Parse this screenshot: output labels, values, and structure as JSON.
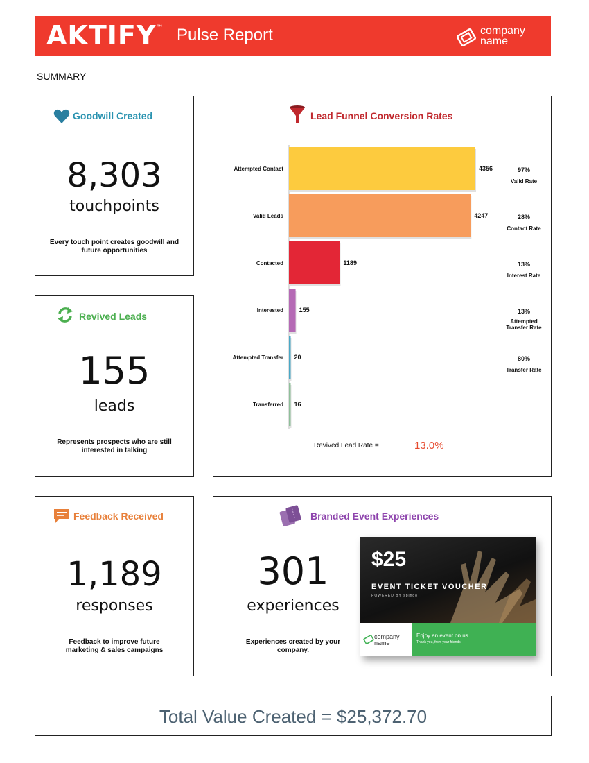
{
  "header": {
    "brand": "AKTIFY",
    "trademark": "™",
    "report_title": "Pulse Report",
    "company_logo_text": "company name"
  },
  "summary_label": "SUMMARY",
  "colors": {
    "banner": "#ef3a2d",
    "goodwill": "#2a93b0",
    "revived": "#4caf50",
    "funnel": "#c0282d",
    "feedback": "#e8803a",
    "branded": "#8e44ad"
  },
  "goodwill": {
    "title": "Goodwill Created",
    "icon": "heart-icon",
    "value": "8,303",
    "unit": "touchpoints",
    "description": "Every touch point creates goodwill and future opportunities"
  },
  "revived": {
    "title": "Revived Leads",
    "icon": "refresh-icon",
    "value": "155",
    "unit": "leads",
    "description": "Represents prospects who are still interested in talking"
  },
  "feedback": {
    "title": "Feedback Received",
    "icon": "chat-icon",
    "value": "1,189",
    "unit": "responses",
    "description": "Feedback to improve future marketing & sales campaigns"
  },
  "branded": {
    "title": "Branded Event Experiences",
    "icon": "ticket-icon",
    "value": "301",
    "unit": "experiences",
    "description": "Experiences created by your company.",
    "voucher": {
      "price": "$25",
      "label": "EVENT TICKET VOUCHER",
      "powered_by": "POWERED BY spingo",
      "company": "company name",
      "enjoy": "Enjoy an event on us.",
      "thanks": "Thank you, from your friends"
    }
  },
  "funnel": {
    "title": "Lead Funnel Conversion Rates",
    "icon": "funnel-icon",
    "revived_rate_label": "Revived Lead Rate =",
    "revived_rate_value": "13.0%"
  },
  "chart_data": {
    "type": "bar",
    "orientation": "horizontal",
    "title": "Lead Funnel Conversion Rates",
    "categories": [
      "Attempted Contact",
      "Valid Leads",
      "Contacted",
      "Interested",
      "Attempted Transfer",
      "Transferred"
    ],
    "values": [
      4356,
      4247,
      1189,
      155,
      20,
      16
    ],
    "colors": [
      "#fdcb3e",
      "#f79c5c",
      "#e32636",
      "#b56ab5",
      "#4aa8c6",
      "#8fbf9a"
    ],
    "xlim": [
      0,
      4356
    ],
    "grid": false,
    "rates": [
      {
        "value": "97%",
        "label": [
          "Valid Rate"
        ]
      },
      {
        "value": "28%",
        "label": [
          "Contact Rate"
        ]
      },
      {
        "value": "13%",
        "label": [
          "Interest Rate"
        ]
      },
      {
        "value": "13%",
        "label": [
          "Attempted",
          "Transfer Rate"
        ]
      },
      {
        "value": "80%",
        "label": [
          "Transfer Rate"
        ]
      }
    ]
  },
  "total": {
    "text": "Total Value Created = $25,372.70"
  }
}
